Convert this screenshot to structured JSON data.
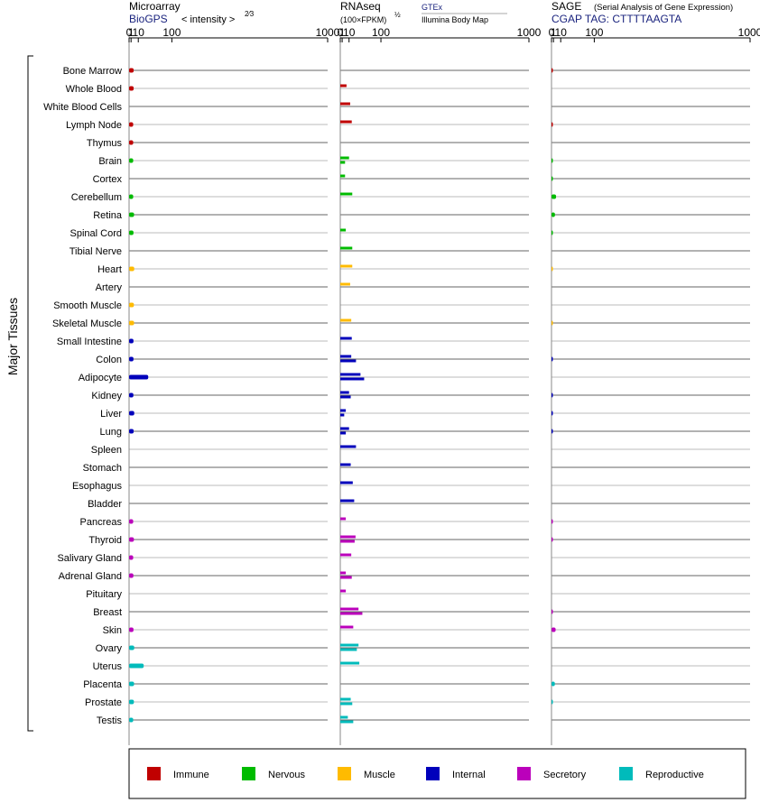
{
  "colors": {
    "Immune": "#c00000",
    "Nervous": "#00bb00",
    "Muscle": "#ffbb00",
    "Internal": "#0000bb",
    "Secretory": "#bb00bb",
    "Reproductive": "#00bbbb"
  },
  "panels": {
    "microarray": {
      "title": "Microarray",
      "source": "BioGPS",
      "unit_text": "< intensity >",
      "unit_sup": "2⁄3"
    },
    "rnaseq": {
      "title": "RNAseq",
      "unit_text": "(100×FPKM)",
      "unit_sup": "½",
      "source1": "GTEx",
      "source2": "Illumina Body Map"
    },
    "sage": {
      "title": "SAGE",
      "subtitle": "(Serial Analysis of Gene Expression)",
      "source": "CGAP TAG: CTTTTAAGTA"
    }
  },
  "y_axis_label": "Major Tissues",
  "tick_labels": [
    "0",
    "1",
    "10",
    "100",
    "1000"
  ],
  "legend": [
    "Immune",
    "Nervous",
    "Muscle",
    "Internal",
    "Secretory",
    "Reproductive"
  ],
  "chart_data": {
    "type": "bar",
    "orientation": "horizontal",
    "scale": "power-2/3 (0, 1, 10, 100, 1000)",
    "xlim": [
      0,
      1000
    ],
    "categories": [
      "Bone Marrow",
      "Whole Blood",
      "White Blood Cells",
      "Lymph Node",
      "Thymus",
      "Brain",
      "Cortex",
      "Cerebellum",
      "Retina",
      "Spinal Cord",
      "Tibial Nerve",
      "Heart",
      "Artery",
      "Smooth Muscle",
      "Skeletal Muscle",
      "Small Intestine",
      "Colon",
      "Adipocyte",
      "Kidney",
      "Liver",
      "Lung",
      "Spleen",
      "Stomach",
      "Esophagus",
      "Bladder",
      "Pancreas",
      "Thyroid",
      "Salivary Gland",
      "Adrenal Gland",
      "Pituitary",
      "Breast",
      "Skin",
      "Ovary",
      "Uterus",
      "Placenta",
      "Prostate",
      "Testis"
    ],
    "groups": [
      "Immune",
      "Immune",
      "Immune",
      "Immune",
      "Immune",
      "Nervous",
      "Nervous",
      "Nervous",
      "Nervous",
      "Nervous",
      "Nervous",
      "Muscle",
      "Muscle",
      "Muscle",
      "Muscle",
      "Internal",
      "Internal",
      "Internal",
      "Internal",
      "Internal",
      "Internal",
      "Internal",
      "Internal",
      "Internal",
      "Internal",
      "Secretory",
      "Secretory",
      "Secretory",
      "Secretory",
      "Secretory",
      "Secretory",
      "Secretory",
      "Reproductive",
      "Reproductive",
      "Reproductive",
      "Reproductive",
      "Reproductive"
    ],
    "series": [
      {
        "name": "Microarray",
        "values": [
          3.5,
          3.5,
          null,
          3.0,
          3.0,
          3.0,
          null,
          3.0,
          4.0,
          3.3,
          null,
          4.2,
          null,
          3.8,
          4.0,
          3.3,
          3.3,
          30,
          3.2,
          4.2,
          3.5,
          null,
          null,
          null,
          null,
          3.0,
          3.8,
          3.0,
          3.2,
          null,
          null,
          3.3,
          4.2,
          20,
          4.0,
          3.8,
          3.0
        ]
      },
      {
        "name": "RNAseq GTEx",
        "values": [
          null,
          6,
          null,
          null,
          null,
          null,
          null,
          null,
          null,
          null,
          null,
          14,
          12,
          null,
          10,
          null,
          null,
          null,
          null,
          null,
          null,
          null,
          null,
          null,
          null,
          null,
          null,
          null,
          null,
          null,
          null,
          null,
          null,
          null,
          null,
          null,
          null
        ]
      },
      {
        "name": "RNAseq GTEx",
        "values": [
          null,
          null,
          12,
          15,
          null,
          10,
          4,
          16,
          null,
          5,
          16,
          16,
          null,
          null,
          14,
          15,
          14,
          35,
          10,
          5,
          10,
          24,
          13,
          17,
          20,
          5,
          23,
          14,
          5,
          5,
          30,
          18,
          30,
          32,
          null,
          13,
          8
        ]
      },
      {
        "name": "RNAseq Illumina Body Map",
        "values": [
          null,
          null,
          null,
          null,
          null,
          4,
          null,
          null,
          null,
          null,
          null,
          null,
          null,
          null,
          null,
          null,
          24,
          45,
          13,
          3,
          5,
          null,
          null,
          null,
          null,
          null,
          21,
          null,
          15,
          null,
          40,
          null,
          26,
          null,
          null,
          16,
          18
        ]
      },
      {
        "name": "SAGE",
        "values": [
          0.1,
          null,
          null,
          0.1,
          null,
          0.1,
          0.1,
          3.5,
          2.3,
          0.1,
          null,
          0.05,
          null,
          null,
          0.05,
          null,
          0.1,
          null,
          0.1,
          0.1,
          0.1,
          null,
          null,
          null,
          null,
          0.1,
          0.1,
          null,
          null,
          null,
          0.1,
          3,
          null,
          null,
          2.2,
          0.1,
          null
        ]
      }
    ]
  }
}
